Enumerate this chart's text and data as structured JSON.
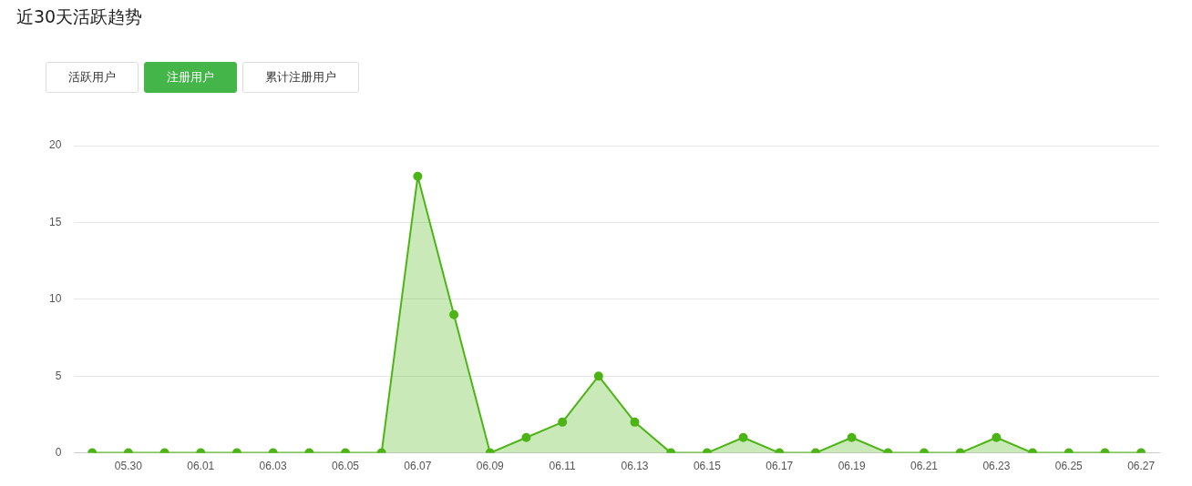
{
  "chart_data": {
    "type": "area",
    "title": "近30天活跃趋势",
    "annotations": [
      "活跃用户",
      "注册用户",
      "累计注册用户"
    ],
    "categories": [
      null,
      "05.30",
      null,
      "06.01",
      null,
      "06.03",
      null,
      "06.05",
      null,
      "06.07",
      null,
      "06.09",
      null,
      "06.11",
      null,
      "06.13",
      null,
      "06.15",
      null,
      "06.17",
      null,
      "06.19",
      null,
      "06.21",
      null,
      "06.23",
      null,
      "06.25",
      null,
      "06.27"
    ],
    "series": [
      {
        "color": "#4cb515",
        "values": [
          0,
          0,
          0,
          0,
          0,
          0,
          0,
          0,
          0,
          18,
          9,
          0,
          1,
          2,
          5,
          2,
          0,
          0,
          1,
          0,
          0,
          1,
          0,
          0,
          0,
          1,
          0,
          0,
          0,
          0
        ]
      }
    ],
    "ylim": [
      0,
      20
    ],
    "yticks": [
      0,
      5,
      10,
      15,
      20
    ],
    "grid": "y",
    "legend": false,
    "marker": "circle",
    "line_style": "solid"
  }
}
